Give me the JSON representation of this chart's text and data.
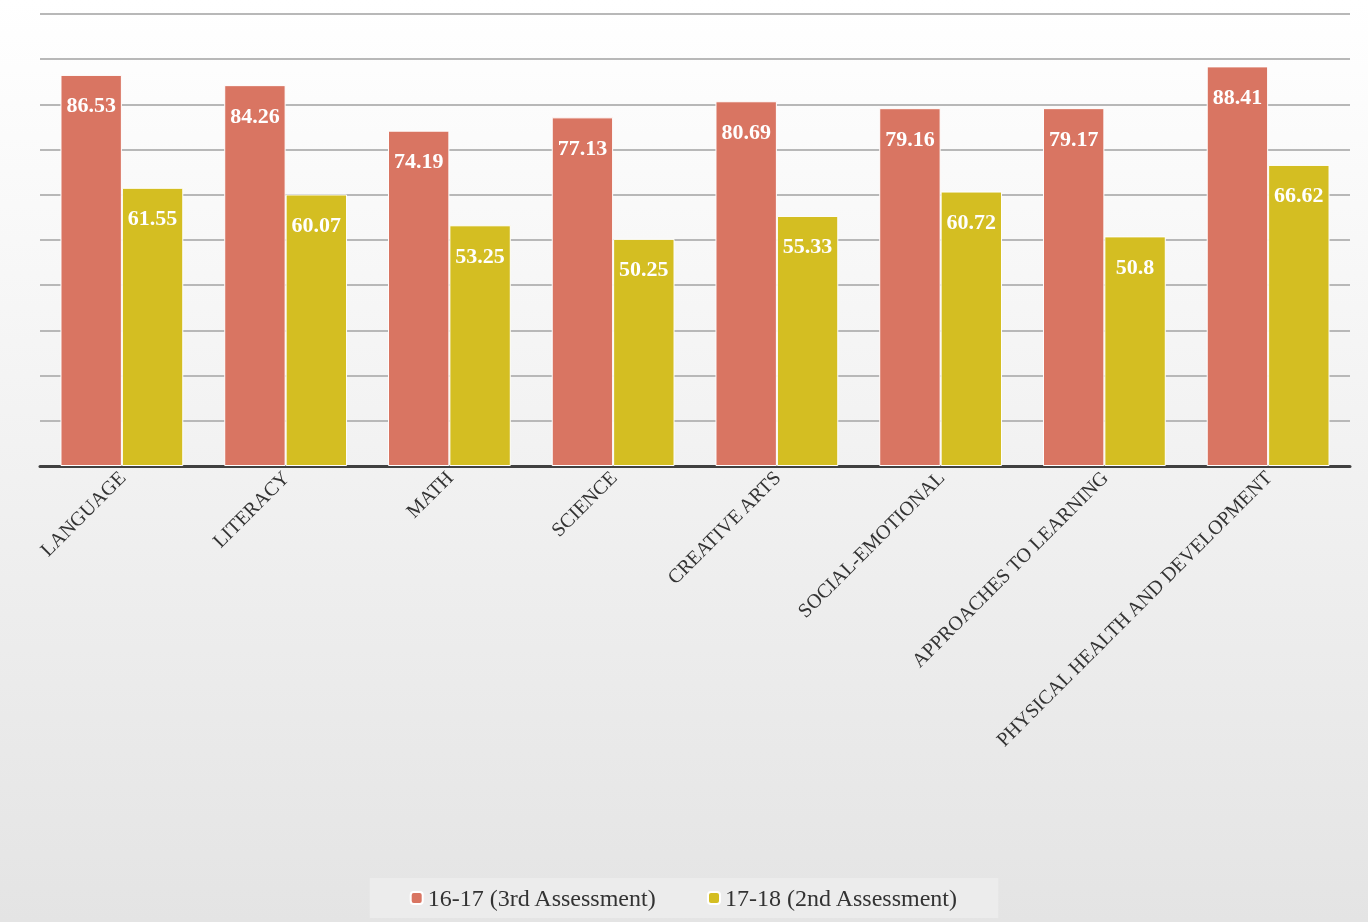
{
  "chart_data": {
    "type": "bar",
    "categories": [
      "LANGUAGE",
      "LITERACY",
      "MATH",
      "SCIENCE",
      "CREATIVE ARTS",
      "SOCIAL-EMOTIONAL",
      "APPROACHES TO LEARNING",
      "PHYSICAL HEALTH AND DEVELOPMENT"
    ],
    "series": [
      {
        "name": "16-17 (3rd Assessment)",
        "color": "#d97562",
        "values": [
          86.53,
          84.26,
          74.19,
          77.13,
          80.69,
          79.16,
          79.17,
          88.41
        ]
      },
      {
        "name": "17-18 (2nd Assessment)",
        "color": "#d4be22",
        "values": [
          61.55,
          60.07,
          53.25,
          50.25,
          55.33,
          60.72,
          50.8,
          66.62
        ]
      }
    ],
    "ylim": [
      0,
      100
    ],
    "yticks": [
      {
        "value": 0,
        "label": null
      },
      {
        "value": 10,
        "label": null
      },
      {
        "value": 20,
        "label": null
      },
      {
        "value": 30,
        "label": null
      },
      {
        "value": 40,
        "label": null
      },
      {
        "value": 50,
        "label": null
      },
      {
        "value": 60,
        "label": null
      },
      {
        "value": 70,
        "label": null
      },
      {
        "value": 80,
        "label": null
      },
      {
        "value": 90,
        "label": null
      },
      {
        "value": 100,
        "label": null
      }
    ],
    "tick_labels": "x",
    "grid": "y",
    "data_labels": true,
    "legend": "bottom"
  }
}
